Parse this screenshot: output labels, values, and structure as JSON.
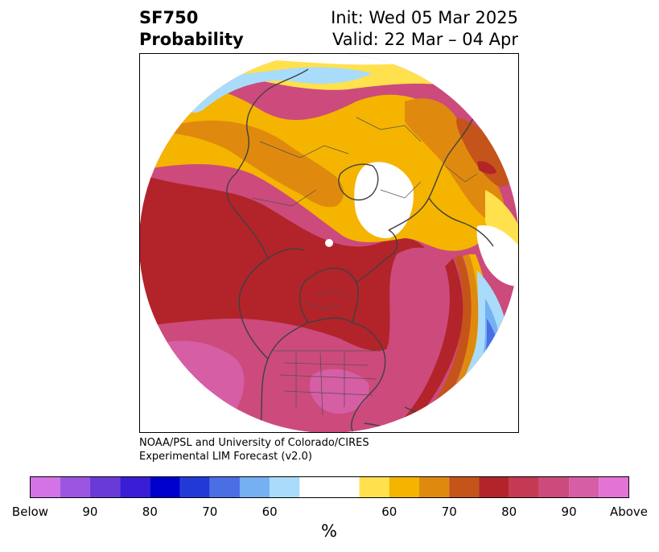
{
  "header": {
    "variable": "SF750",
    "product": "Probability",
    "init": "Init: Wed 05 Mar 2025",
    "valid": "Valid: 22 Mar – 04 Apr"
  },
  "credit": {
    "line1": "NOAA/PSL and University of Colorado/CIRES",
    "line2": "Experimental LIM Forecast (v2.0)"
  },
  "colorbar": {
    "unit": "%",
    "colors": [
      "#d473e6",
      "#9b55e0",
      "#6a3ad9",
      "#3a1dd6",
      "#0000cc",
      "#2239d8",
      "#4a6fe5",
      "#74b0f2",
      "#a9dcfa",
      "#ffffff",
      "#ffe14d",
      "#f4b400",
      "#df8a0e",
      "#c4541a",
      "#b2242a",
      "#c43a55",
      "#cc4b7c",
      "#d65ea5",
      "#e374d6"
    ],
    "tick_labels": [
      "Below",
      "90",
      "80",
      "70",
      "60",
      "60",
      "70",
      "80",
      "90",
      "Above"
    ]
  },
  "map": {
    "projection": "north-polar-stereographic",
    "features": [
      "coastlines",
      "country-borders",
      "us-state-borders"
    ]
  }
}
